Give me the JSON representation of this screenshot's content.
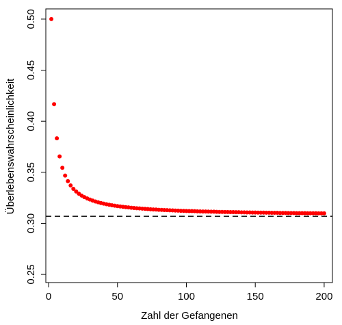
{
  "chart_data": {
    "type": "scatter",
    "xlabel": "Zahl der Gefangenen",
    "ylabel": "Überlebenswahrscheinlichkeit",
    "xlim": [
      -2,
      206
    ],
    "ylim": [
      0.242,
      0.51
    ],
    "xticks": [
      0,
      50,
      100,
      150,
      200
    ],
    "xtick_labels": [
      "0",
      "50",
      "100",
      "150",
      "200"
    ],
    "yticks": [
      0.25,
      0.3,
      0.35,
      0.4,
      0.45,
      0.5
    ],
    "ytick_labels": [
      "0.25",
      "0.30",
      "0.35",
      "0.40",
      "0.45",
      "0.50"
    ],
    "grid": false,
    "point_color": "#ff0000",
    "reference_line": {
      "y": 0.3069,
      "style": "dashed",
      "color": "#000000"
    },
    "series": [
      {
        "x": [
          2,
          4,
          6,
          8,
          10,
          12,
          14,
          16,
          18,
          20,
          22,
          24,
          26,
          28,
          30,
          32,
          34,
          36,
          38,
          40,
          42,
          44,
          46,
          48,
          50,
          52,
          54,
          56,
          58,
          60,
          62,
          64,
          66,
          68,
          70,
          72,
          74,
          76,
          78,
          80,
          82,
          84,
          86,
          88,
          90,
          92,
          94,
          96,
          98,
          100,
          102,
          104,
          106,
          108,
          110,
          112,
          114,
          116,
          118,
          120,
          122,
          124,
          126,
          128,
          130,
          132,
          134,
          136,
          138,
          140,
          142,
          144,
          146,
          148,
          150,
          152,
          154,
          156,
          158,
          160,
          162,
          164,
          166,
          168,
          170,
          172,
          174,
          176,
          178,
          180,
          182,
          184,
          186,
          188,
          190,
          192,
          194,
          196,
          198,
          200
        ],
        "y": [
          0.5,
          0.4167,
          0.3833,
          0.3655,
          0.3544,
          0.3468,
          0.3413,
          0.3371,
          0.3338,
          0.3312,
          0.329,
          0.3272,
          0.3257,
          0.3244,
          0.3233,
          0.3223,
          0.3214,
          0.3206,
          0.3199,
          0.3193,
          0.3187,
          0.3182,
          0.3177,
          0.3173,
          0.3169,
          0.3165,
          0.3162,
          0.3159,
          0.3156,
          0.3153,
          0.315,
          0.3148,
          0.3146,
          0.3144,
          0.3142,
          0.314,
          0.3138,
          0.3136,
          0.3135,
          0.3133,
          0.3132,
          0.313,
          0.3129,
          0.3128,
          0.3127,
          0.3125,
          0.3124,
          0.3123,
          0.3122,
          0.3121,
          0.312,
          0.312,
          0.3119,
          0.3118,
          0.3117,
          0.3116,
          0.3116,
          0.3115,
          0.3114,
          0.3114,
          0.3113,
          0.3112,
          0.3112,
          0.3111,
          0.3111,
          0.311,
          0.311,
          0.3109,
          0.3109,
          0.3108,
          0.3108,
          0.3107,
          0.3107,
          0.3106,
          0.3106,
          0.3105,
          0.3105,
          0.3105,
          0.3104,
          0.3104,
          0.3103,
          0.3103,
          0.3103,
          0.3102,
          0.3102,
          0.3102,
          0.3101,
          0.3101,
          0.3101,
          0.31,
          0.31,
          0.31,
          0.31,
          0.3099,
          0.3099,
          0.3099,
          0.3099,
          0.3098,
          0.3098,
          0.3098
        ]
      }
    ]
  }
}
